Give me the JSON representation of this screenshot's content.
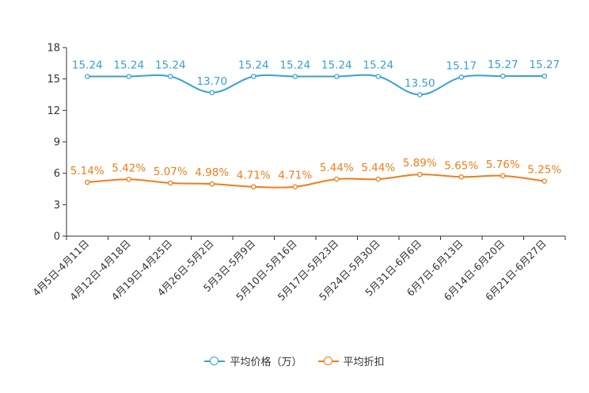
{
  "chart_data": {
    "type": "line",
    "categories": [
      "4月5日-4月11日",
      "4月12日-4月18日",
      "4月19日-4月25日",
      "4月26日-5月2日",
      "5月3日-5月9日",
      "5月10日-5月16日",
      "5月17日-5月23日",
      "5月24日-5月30日",
      "5月31日-6月6日",
      "6月7日-6月13日",
      "6月14日-6月20日",
      "6月21日-6月27日"
    ],
    "series": [
      {
        "name": "平均价格（万）",
        "color": "#3a9fd6",
        "values": [
          15.24,
          15.24,
          15.24,
          13.7,
          15.24,
          15.24,
          15.24,
          15.24,
          13.5,
          15.17,
          15.27,
          15.27
        ],
        "labels": [
          "15.24",
          "15.24",
          "15.24",
          "13.70",
          "15.24",
          "15.24",
          "15.24",
          "15.24",
          "13.50",
          "15.17",
          "15.27",
          "15.27"
        ]
      },
      {
        "name": "平均折扣",
        "color": "#f07d1a",
        "values": [
          5.14,
          5.42,
          5.07,
          4.98,
          4.71,
          4.71,
          5.44,
          5.44,
          5.89,
          5.65,
          5.76,
          5.25
        ],
        "labels": [
          "5.14%",
          "5.42%",
          "5.07%",
          "4.98%",
          "4.71%",
          "4.71%",
          "5.44%",
          "5.44%",
          "5.89%",
          "5.65%",
          "5.76%",
          "5.25%"
        ]
      }
    ],
    "yticks": [
      "0",
      "3",
      "6",
      "9",
      "12",
      "15",
      "18"
    ],
    "ylim": [
      0,
      18
    ],
    "legend_position": "bottom"
  }
}
